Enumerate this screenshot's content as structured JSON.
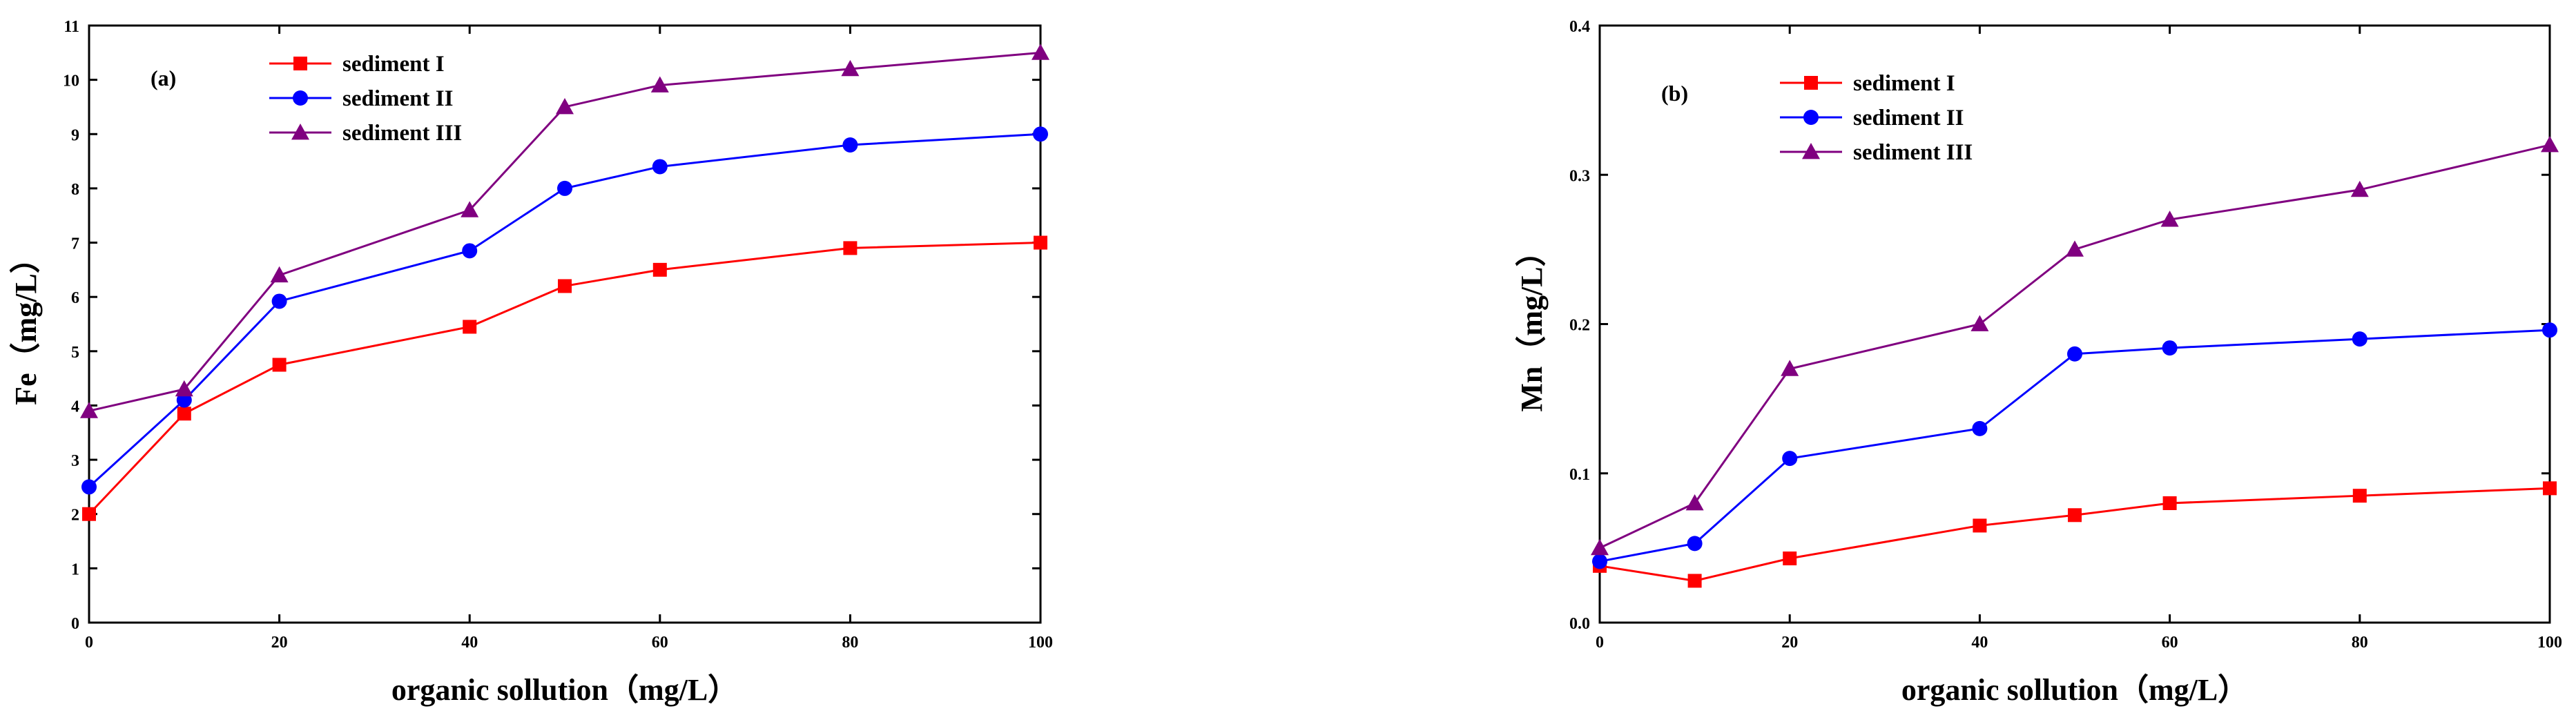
{
  "chart_data": [
    {
      "type": "line",
      "panel_label": "(a)",
      "xlabel": "organic sollution（mg/L）",
      "ylabel": "Fe（mg/L）",
      "x": [
        0,
        10,
        20,
        40,
        50,
        60,
        80,
        100
      ],
      "xlim": [
        0,
        100
      ],
      "ylim": [
        0,
        11
      ],
      "xticks": [
        0,
        20,
        40,
        60,
        80,
        100
      ],
      "yticks": [
        0,
        1,
        2,
        3,
        4,
        5,
        6,
        7,
        8,
        9,
        10,
        11
      ],
      "tick_labels_x": [
        "0",
        "20",
        "40",
        "60",
        "80",
        "100"
      ],
      "tick_labels_y": [
        "0",
        "1",
        "2",
        "3",
        "4",
        "5",
        "6",
        "7",
        "8",
        "9",
        "10",
        "11"
      ],
      "legend_position": "top-left",
      "grid": false,
      "series": [
        {
          "name": "sediment I",
          "color": "#ff0000",
          "marker": "square",
          "values": [
            2.0,
            3.85,
            4.75,
            5.45,
            6.2,
            6.5,
            6.9,
            7.0
          ]
        },
        {
          "name": "sediment II",
          "color": "#0000ff",
          "marker": "circle",
          "values": [
            2.5,
            4.1,
            5.92,
            6.85,
            8.0,
            8.4,
            8.8,
            9.0
          ]
        },
        {
          "name": "sediment III",
          "color": "#800080",
          "marker": "triangle",
          "values": [
            3.9,
            4.3,
            6.4,
            7.6,
            9.5,
            9.9,
            10.2,
            10.5
          ]
        }
      ]
    },
    {
      "type": "line",
      "panel_label": "(b)",
      "xlabel": "organic sollution（mg/L）",
      "ylabel": "Mn（mg/L）",
      "x": [
        0,
        10,
        20,
        40,
        50,
        60,
        80,
        100
      ],
      "xlim": [
        0,
        100
      ],
      "ylim": [
        0,
        0.4
      ],
      "xticks": [
        0,
        20,
        40,
        60,
        80,
        100
      ],
      "yticks": [
        0,
        0.1,
        0.2,
        0.3,
        0.4
      ],
      "tick_labels_x": [
        "0",
        "20",
        "40",
        "60",
        "80",
        "100"
      ],
      "tick_labels_y": [
        "0.0",
        "0.1",
        "0.2",
        "0.3",
        "0.4"
      ],
      "legend_position": "top-left",
      "grid": false,
      "series": [
        {
          "name": "sediment I",
          "color": "#ff0000",
          "marker": "square",
          "values": [
            0.038,
            0.028,
            0.043,
            0.065,
            0.072,
            0.08,
            0.085,
            0.09
          ]
        },
        {
          "name": "sediment II",
          "color": "#0000ff",
          "marker": "circle",
          "values": [
            0.041,
            0.053,
            0.11,
            0.13,
            0.18,
            0.184,
            0.19,
            0.196
          ]
        },
        {
          "name": "sediment III",
          "color": "#800080",
          "marker": "triangle",
          "values": [
            0.05,
            0.08,
            0.17,
            0.2,
            0.25,
            0.27,
            0.29,
            0.32
          ]
        }
      ]
    }
  ]
}
